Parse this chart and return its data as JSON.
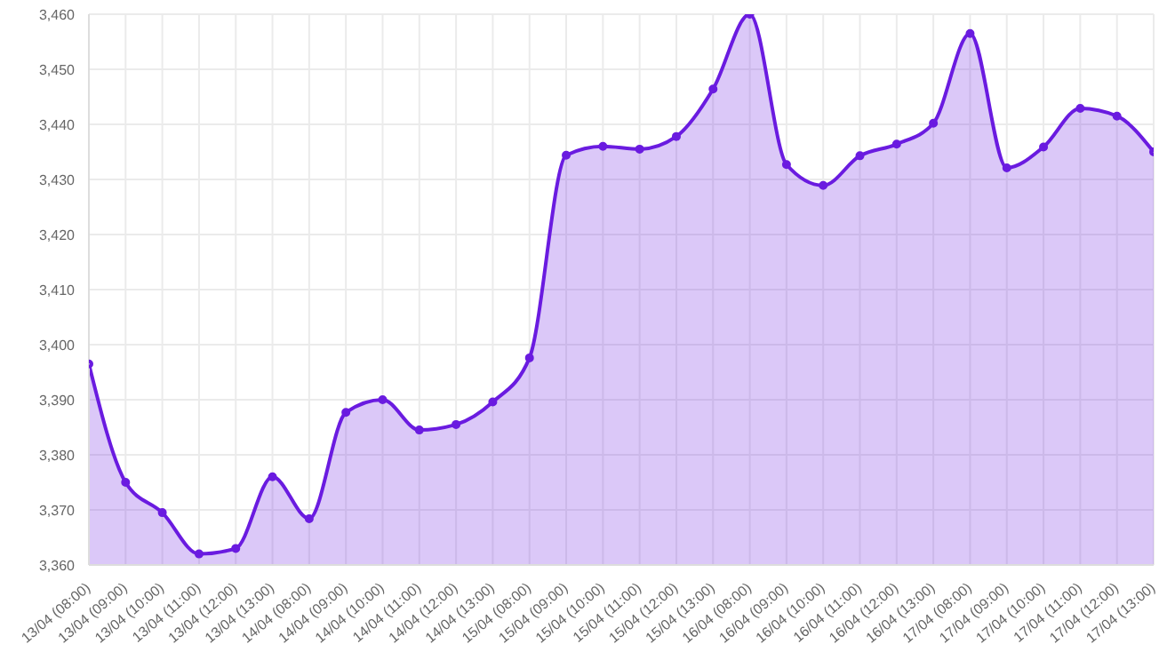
{
  "chart_data": {
    "type": "area",
    "categories": [
      "13/04 (08:00)",
      "13/04 (09:00)",
      "13/04 (10:00)",
      "13/04 (11:00)",
      "13/04 (12:00)",
      "13/04 (13:00)",
      "14/04 (08:00)",
      "14/04 (09:00)",
      "14/04 (10:00)",
      "14/04 (11:00)",
      "14/04 (12:00)",
      "14/04 (13:00)",
      "15/04 (08:00)",
      "15/04 (09:00)",
      "15/04 (10:00)",
      "15/04 (11:00)",
      "15/04 (12:00)",
      "15/04 (13:00)",
      "16/04 (08:00)",
      "16/04 (09:00)",
      "16/04 (10:00)",
      "16/04 (11:00)",
      "16/04 (12:00)",
      "16/04 (13:00)",
      "17/04 (08:00)",
      "17/04 (09:00)",
      "17/04 (10:00)",
      "17/04 (11:00)",
      "17/04 (12:00)",
      "17/04 (13:00)"
    ],
    "series": [
      {
        "color": "#6a1be0",
        "values": [
          3396.5,
          3375,
          3369.5,
          3362,
          3363,
          3376,
          3368.4,
          3387.7,
          3390,
          3384.5,
          3385.5,
          3389.6,
          3397.6,
          3434.4,
          3436,
          3435.5,
          3437.8,
          3446.4,
          3460,
          3432.7,
          3428.9,
          3434.3,
          3436.4,
          3440.2,
          3456.5,
          3432.1,
          3435.9,
          3442.9,
          3441.5,
          3435
        ]
      }
    ],
    "ylim": [
      3360,
      3460
    ],
    "yticks": [
      {
        "value": 3360,
        "label": "3,360"
      },
      {
        "value": 3370,
        "label": "3,370"
      },
      {
        "value": 3380,
        "label": "3,380"
      },
      {
        "value": 3390,
        "label": "3,390"
      },
      {
        "value": 3400,
        "label": "3,400"
      },
      {
        "value": 3410,
        "label": "3,410"
      },
      {
        "value": 3420,
        "label": "3,420"
      },
      {
        "value": 3430,
        "label": "3,430"
      },
      {
        "value": 3440,
        "label": "3,440"
      },
      {
        "value": 3450,
        "label": "3,450"
      },
      {
        "value": 3460,
        "label": "3,460"
      }
    ],
    "grid": true,
    "marker": "circle",
    "line_style": "solid"
  }
}
